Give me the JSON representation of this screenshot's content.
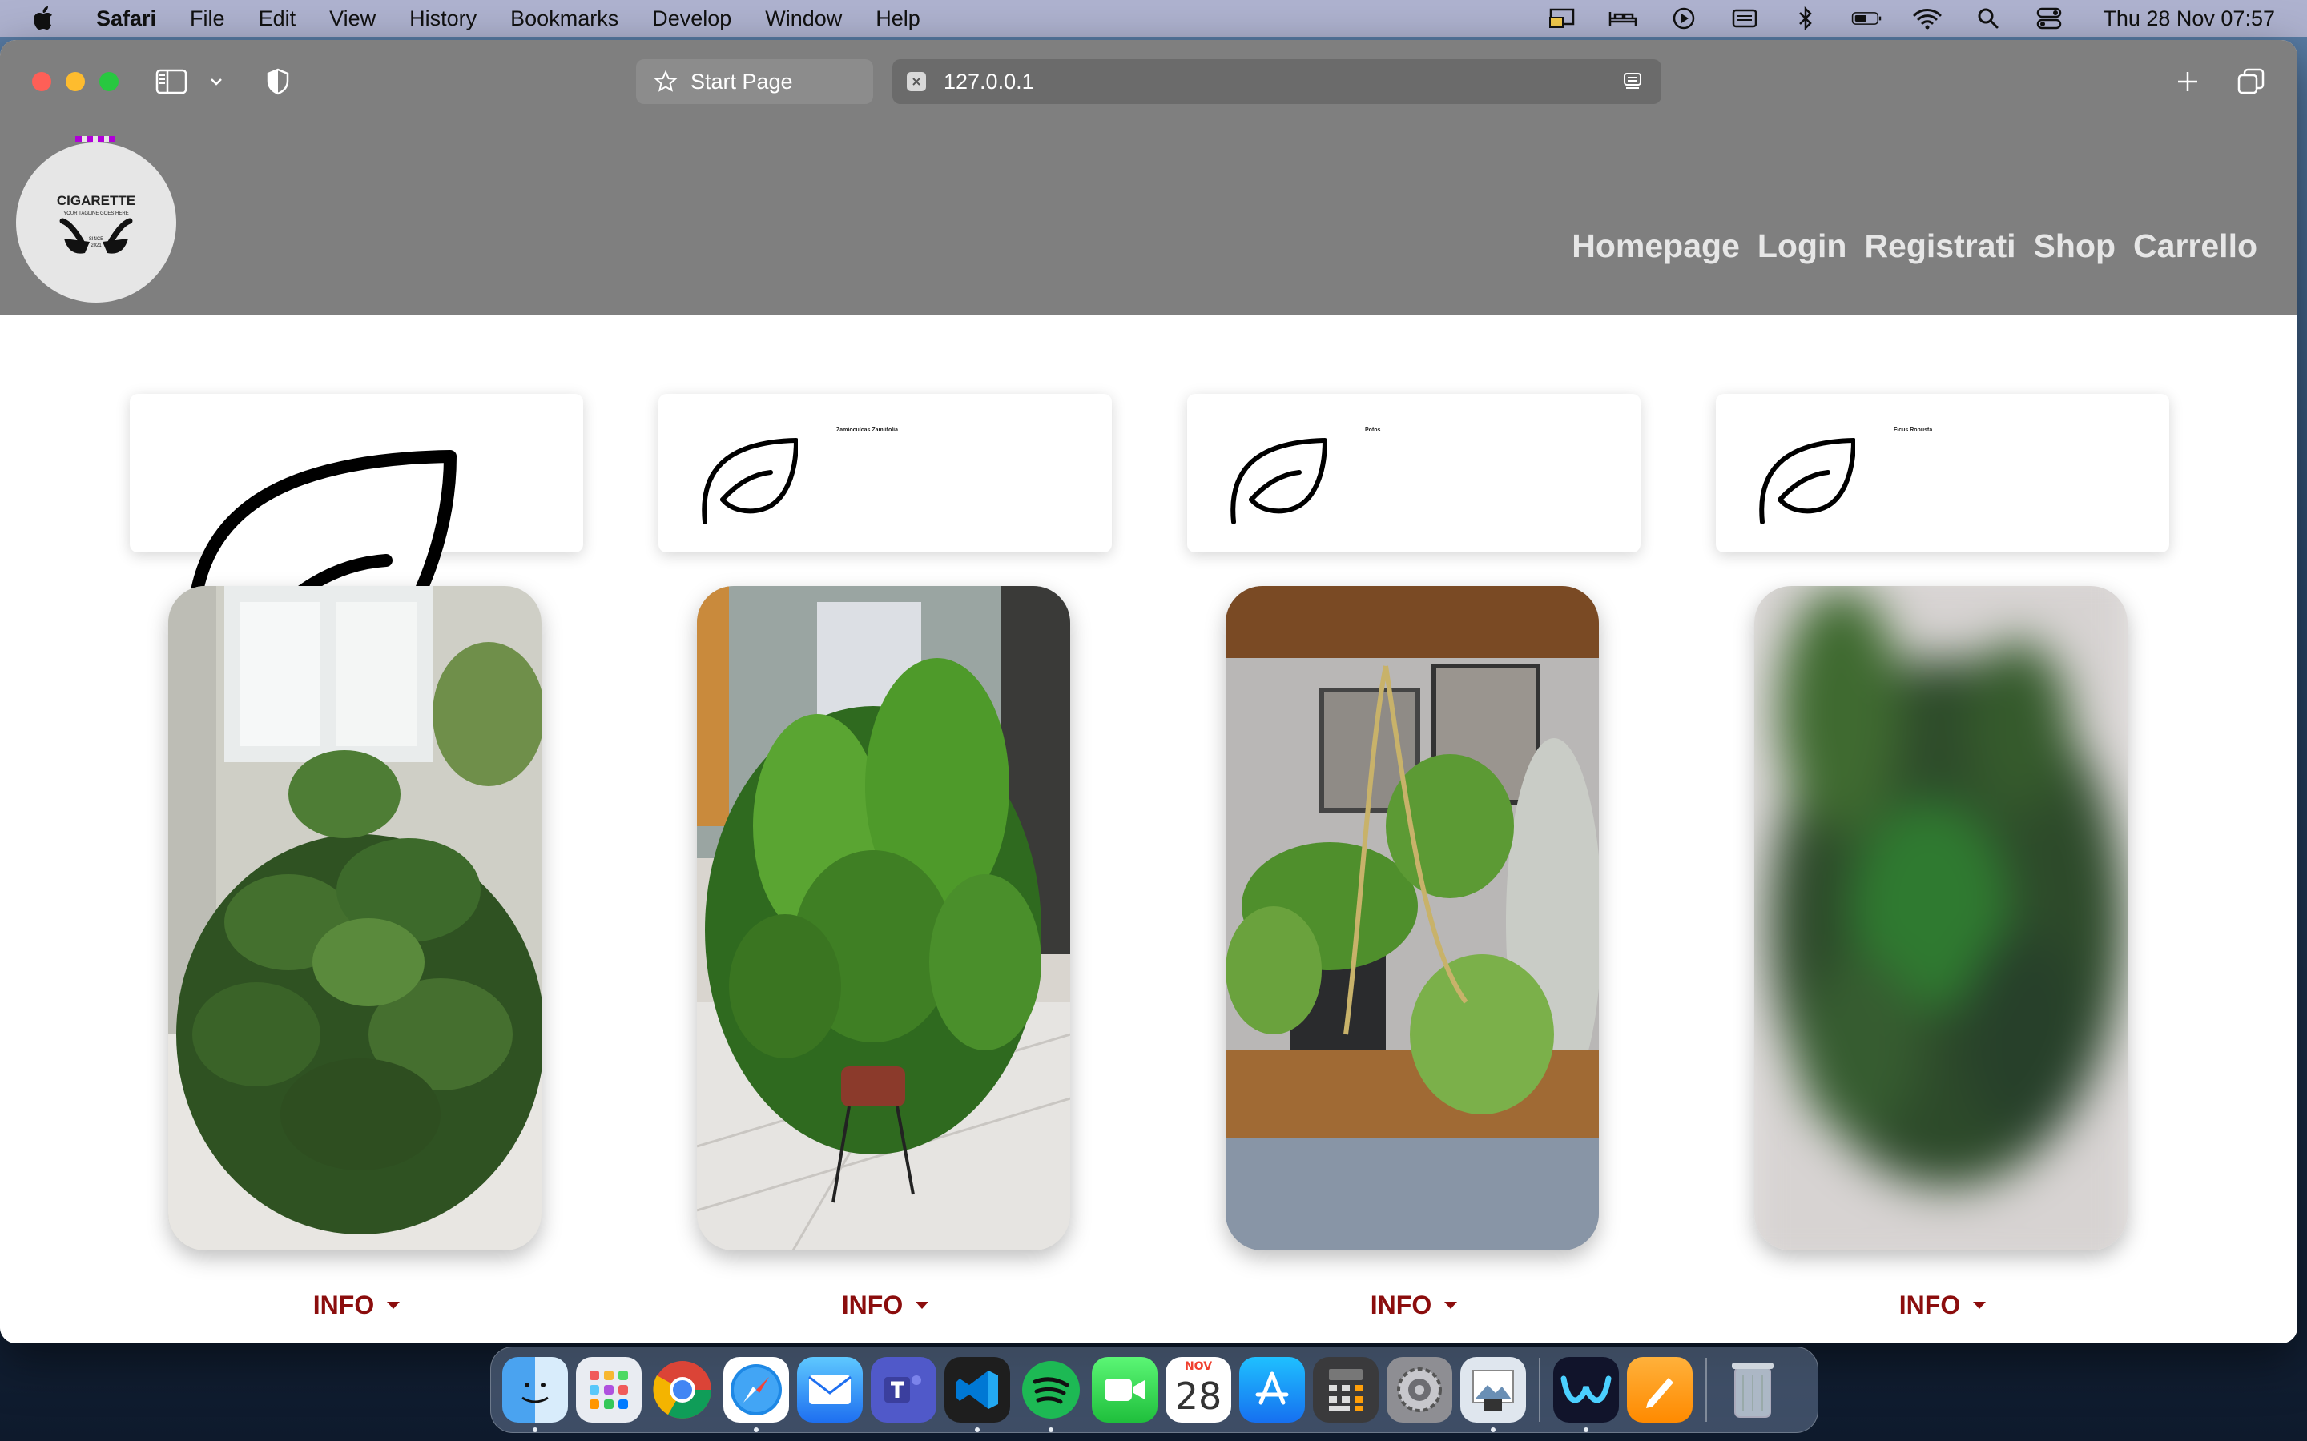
{
  "menubar": {
    "app_name": "Safari",
    "items": [
      "File",
      "Edit",
      "View",
      "History",
      "Bookmarks",
      "Develop",
      "Window",
      "Help"
    ],
    "clock": "Thu 28 Nov  07:57"
  },
  "browser": {
    "tab_start": "Start Page",
    "tab_active": "127.0.0.1"
  },
  "site": {
    "logo": {
      "brand": "CIGARETTE",
      "tagline": "YOUR TAGLINE GOES HERE",
      "since": "SINCE",
      "year": "2021"
    },
    "nav": [
      "Homepage",
      "Login",
      "Registrati",
      "Shop",
      "Carrello"
    ]
  },
  "products": [
    {
      "name": "",
      "info_label": "INFO"
    },
    {
      "name": "Zamioculcas Zamiifolia",
      "info_label": "INFO"
    },
    {
      "name": "Potos",
      "info_label": "INFO"
    },
    {
      "name": "Ficus Robusta",
      "info_label": "INFO"
    }
  ],
  "dock": {
    "calendar_month": "NOV",
    "calendar_day": "28"
  },
  "colors": {
    "header_bg": "#7f7f7f",
    "nav_text": "#e6e6e6",
    "info_text": "#8b0d0d"
  }
}
